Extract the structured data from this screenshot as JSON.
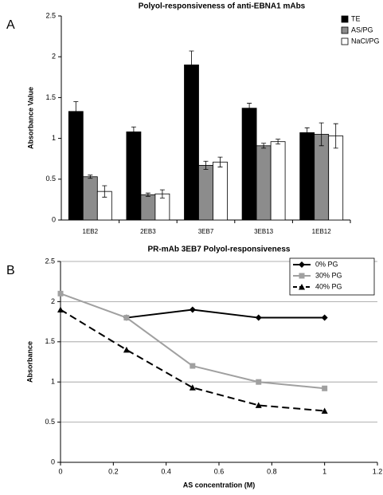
{
  "chart_data": [
    {
      "type": "bar",
      "panel": "A",
      "title": "Polyol-responsiveness of anti-EBNA1 mAbs",
      "ylabel": "Absorbance Value",
      "categories": [
        "1EB2",
        "2EB3",
        "3EB7",
        "3EB13",
        "1EB12"
      ],
      "series": [
        {
          "name": "TE",
          "color": "#000000",
          "values": [
            1.33,
            1.08,
            1.9,
            1.37,
            1.07
          ],
          "errors": [
            0.12,
            0.06,
            0.17,
            0.06,
            0.06
          ]
        },
        {
          "name": "AS/PG",
          "color": "#8c8c8c",
          "values": [
            0.53,
            0.31,
            0.67,
            0.91,
            1.05
          ],
          "errors": [
            0.02,
            0.02,
            0.05,
            0.03,
            0.14
          ]
        },
        {
          "name": "NaCl/PG",
          "color": "#ffffff",
          "values": [
            0.35,
            0.32,
            0.71,
            0.96,
            1.03
          ],
          "errors": [
            0.07,
            0.05,
            0.06,
            0.03,
            0.15
          ]
        }
      ],
      "ylim": [
        0,
        2.5
      ],
      "yticks": [
        0,
        0.5,
        1,
        1.5,
        2,
        2.5
      ],
      "grid": false,
      "legend": "top-right"
    },
    {
      "type": "line",
      "panel": "B",
      "title": "PR-mAb 3EB7 Polyol-responsiveness",
      "xlabel": "AS concentration (M)",
      "ylabel": "Absorbance",
      "series": [
        {
          "name": "0% PG",
          "color": "#000000",
          "marker": "diamond",
          "dash": false,
          "x": [
            0.25,
            0.5,
            0.75,
            1
          ],
          "values": [
            1.8,
            1.9,
            1.8,
            1.8
          ]
        },
        {
          "name": "30% PG",
          "color": "#a0a0a0",
          "marker": "square",
          "dash": false,
          "x": [
            0,
            0.25,
            0.5,
            0.75,
            1
          ],
          "values": [
            2.1,
            1.8,
            1.2,
            1.0,
            0.92
          ]
        },
        {
          "name": "40% PG",
          "color": "#000000",
          "marker": "triangle",
          "dash": true,
          "x": [
            0,
            0.25,
            0.5,
            0.75,
            1
          ],
          "values": [
            1.9,
            1.4,
            0.93,
            0.71,
            0.64
          ]
        }
      ],
      "xlim": [
        0,
        1.2
      ],
      "xticks": [
        0,
        0.2,
        0.4,
        0.6,
        0.8,
        1,
        1.2
      ],
      "ylim": [
        0,
        2.5
      ],
      "yticks": [
        0,
        0.5,
        1,
        1.5,
        2,
        2.5
      ],
      "grid": true,
      "legend": "top-right"
    }
  ]
}
